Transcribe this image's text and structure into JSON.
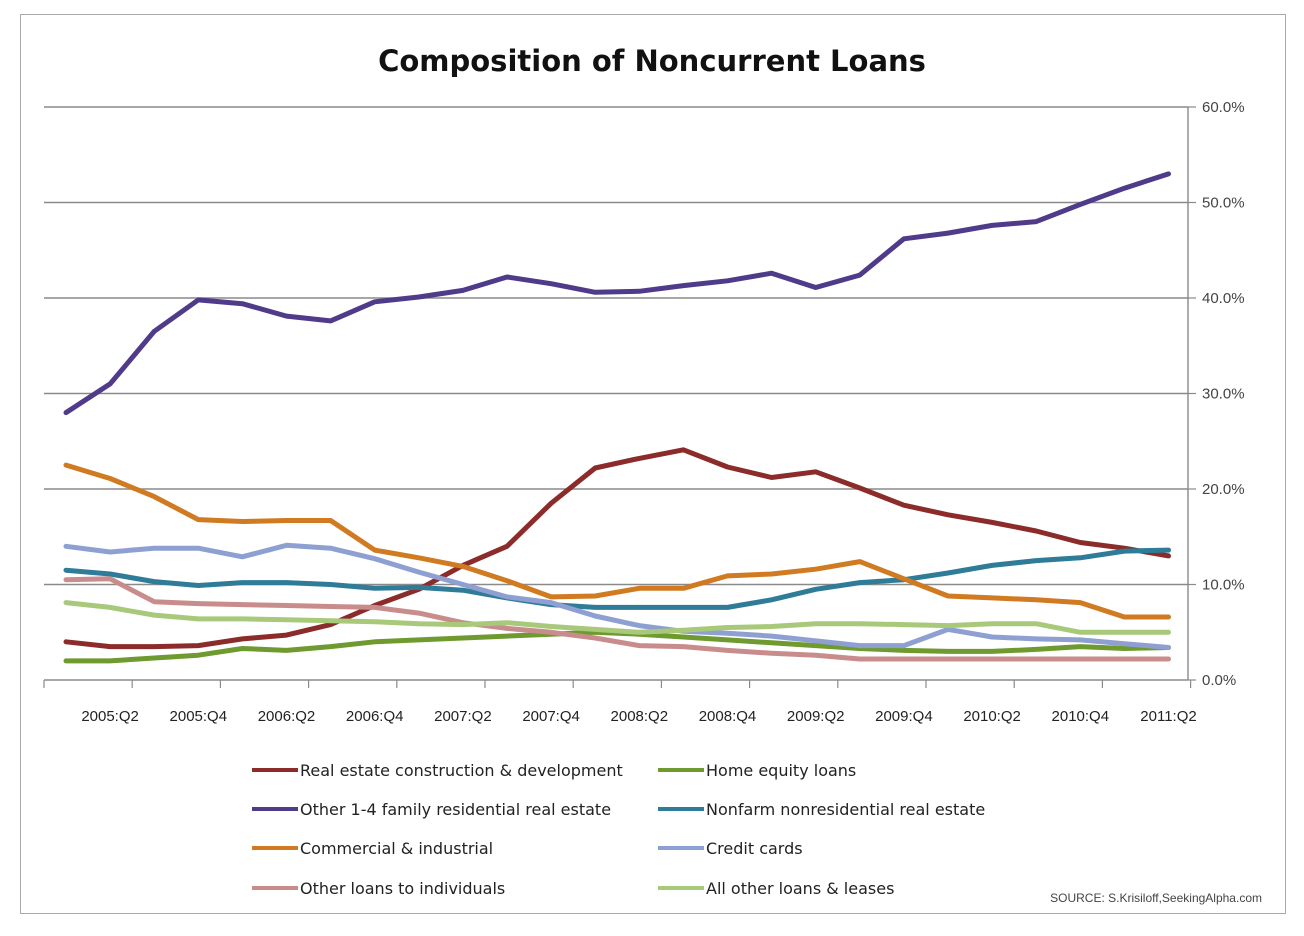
{
  "chart_data": {
    "type": "line",
    "title": "Composition of Noncurrent Loans",
    "source": "SOURCE: S.Krisiloff,SeekingAlpha.com",
    "xlabel": "",
    "ylabel": "",
    "ylim": [
      0,
      60
    ],
    "y_ticks": [
      "0.0%",
      "10.0%",
      "20.0%",
      "30.0%",
      "40.0%",
      "50.0%",
      "60.0%"
    ],
    "y_axis_position": "right",
    "grid": "horizontal",
    "legend_position": "bottom",
    "x_labels_shown": [
      "2005:Q2",
      "2005:Q4",
      "2006:Q2",
      "2006:Q4",
      "2007:Q2",
      "2007:Q4",
      "2008:Q2",
      "2008:Q4",
      "2009:Q2",
      "2009:Q4",
      "2010:Q2",
      "2010:Q4",
      "2011:Q2"
    ],
    "x": [
      "2005:Q1",
      "2005:Q2",
      "2005:Q3",
      "2005:Q4",
      "2006:Q1",
      "2006:Q2",
      "2006:Q3",
      "2006:Q4",
      "2007:Q1",
      "2007:Q2",
      "2007:Q3",
      "2007:Q4",
      "2008:Q1",
      "2008:Q2",
      "2008:Q3",
      "2008:Q4",
      "2009:Q1",
      "2009:Q2",
      "2009:Q3",
      "2009:Q4",
      "2010:Q1",
      "2010:Q2",
      "2010:Q3",
      "2010:Q4",
      "2011:Q1",
      "2011:Q2"
    ],
    "series": [
      {
        "name": "Real estate construction & development",
        "color": "#8b2c2a",
        "values": [
          4.0,
          3.5,
          3.5,
          3.6,
          4.3,
          4.7,
          5.8,
          7.8,
          9.5,
          12.0,
          14.0,
          18.5,
          22.2,
          23.2,
          24.1,
          22.3,
          21.2,
          21.8,
          20.1,
          18.3,
          17.3,
          16.5,
          15.6,
          14.4,
          13.8,
          13.0
        ]
      },
      {
        "name": "Home equity loans",
        "color": "#6f9a2f",
        "values": [
          2.0,
          2.0,
          2.3,
          2.6,
          3.3,
          3.1,
          3.5,
          4.0,
          4.2,
          4.4,
          4.6,
          4.8,
          5.0,
          4.8,
          4.5,
          4.2,
          3.9,
          3.6,
          3.3,
          3.1,
          3.0,
          3.0,
          3.2,
          3.5,
          3.3,
          3.4
        ]
      },
      {
        "name": "Other 1-4 family residential real estate",
        "color": "#4f3b8a",
        "values": [
          28.0,
          31.0,
          36.5,
          39.8,
          39.4,
          38.1,
          37.6,
          39.6,
          40.1,
          40.8,
          42.2,
          41.5,
          40.6,
          40.7,
          41.3,
          41.8,
          42.6,
          41.1,
          42.4,
          46.2,
          46.8,
          47.6,
          48.0,
          49.8,
          51.5,
          53.0
        ]
      },
      {
        "name": "Nonfarm nonresidential real estate",
        "color": "#2e7c97",
        "values": [
          11.5,
          11.1,
          10.3,
          9.9,
          10.2,
          10.2,
          10.0,
          9.6,
          9.7,
          9.4,
          8.6,
          7.9,
          7.6,
          7.6,
          7.6,
          7.6,
          8.4,
          9.5,
          10.2,
          10.5,
          11.2,
          12.0,
          12.5,
          12.8,
          13.5,
          13.6
        ]
      },
      {
        "name": "Commercial & industrial",
        "color": "#d07a22",
        "values": [
          22.5,
          21.1,
          19.2,
          16.8,
          16.6,
          16.7,
          16.7,
          13.6,
          12.8,
          11.9,
          10.4,
          8.7,
          8.8,
          9.6,
          9.6,
          10.9,
          11.1,
          11.6,
          12.4,
          10.6,
          8.8,
          8.6,
          8.4,
          8.1,
          6.6,
          6.6
        ]
      },
      {
        "name": "Credit cards",
        "color": "#8e9fd1",
        "values": [
          14.0,
          13.4,
          13.8,
          13.8,
          12.9,
          14.1,
          13.8,
          12.7,
          11.3,
          10.0,
          8.7,
          8.1,
          6.7,
          5.7,
          5.1,
          4.9,
          4.6,
          4.1,
          3.6,
          3.6,
          5.3,
          4.5,
          4.3,
          4.2,
          3.8,
          3.4
        ]
      },
      {
        "name": "Other loans to individuals",
        "color": "#c98c8c",
        "values": [
          10.5,
          10.6,
          8.2,
          8.0,
          7.9,
          7.8,
          7.7,
          7.6,
          7.0,
          6.0,
          5.4,
          5.0,
          4.4,
          3.6,
          3.5,
          3.1,
          2.8,
          2.6,
          2.2,
          2.2,
          2.2,
          2.2,
          2.2,
          2.2,
          2.2,
          2.2
        ]
      },
      {
        "name": "All other loans & leases",
        "color": "#a8c97a",
        "values": [
          8.1,
          7.6,
          6.8,
          6.4,
          6.4,
          6.3,
          6.2,
          6.1,
          5.9,
          5.8,
          6.0,
          5.6,
          5.3,
          5.0,
          5.2,
          5.5,
          5.6,
          5.9,
          5.9,
          5.8,
          5.7,
          5.9,
          5.9,
          5.0,
          5.0,
          5.0
        ]
      }
    ]
  }
}
